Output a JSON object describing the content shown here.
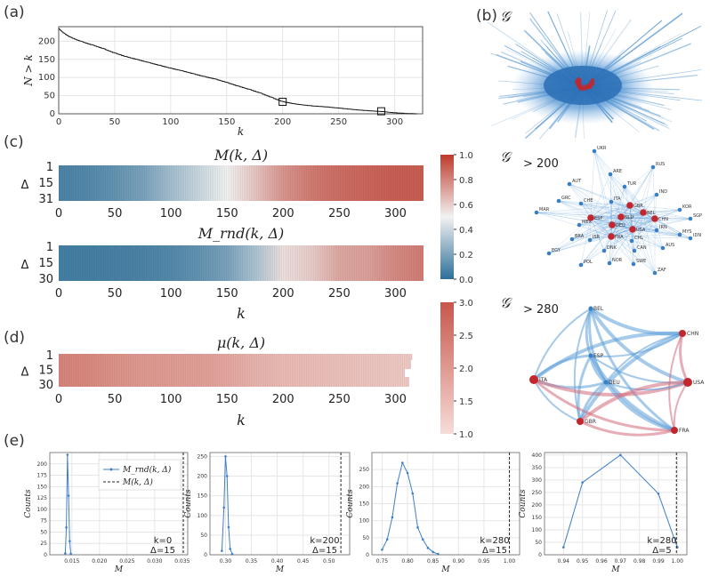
{
  "panel_labels": {
    "a": "(a)",
    "b": "(b)",
    "c": "(c)",
    "d": "(d)",
    "e": "(e)"
  },
  "network_titles": {
    "g": "𝒢",
    "g200": "𝒢",
    "g200_sub": "> 200",
    "g280": "𝒢",
    "g280_sub": "> 280"
  },
  "colors": {
    "blue": "#3a7fc4",
    "red": "#c1272d",
    "heat_low": "#2c6f99",
    "heat_mid": "#f2f2f2",
    "heat_high": "#bf3a2b",
    "mu_low": "#f3d4d0",
    "mu_high": "#c8574a"
  },
  "chart_data": [
    {
      "id": "a",
      "type": "line",
      "title": "",
      "xlabel": "k",
      "ylabel": "N > k",
      "xlim": [
        0,
        325
      ],
      "ylim": [
        0,
        240
      ],
      "xticks": [
        0,
        50,
        100,
        150,
        200,
        250,
        300
      ],
      "yticks": [
        0,
        50,
        100,
        150,
        200
      ],
      "x": [
        0,
        5,
        10,
        20,
        30,
        40,
        50,
        60,
        70,
        80,
        90,
        100,
        110,
        120,
        130,
        140,
        150,
        160,
        170,
        180,
        190,
        200,
        210,
        220,
        230,
        240,
        250,
        260,
        270,
        280,
        290,
        300,
        310,
        320
      ],
      "values": [
        235,
        222,
        212,
        200,
        190,
        180,
        168,
        158,
        150,
        142,
        134,
        126,
        119,
        111,
        103,
        96,
        87,
        77,
        68,
        58,
        46,
        34,
        28,
        24,
        21,
        19,
        16,
        13,
        10,
        8,
        6,
        3,
        1,
        0
      ],
      "markers": [
        {
          "x": 200,
          "y": 33
        },
        {
          "x": 288,
          "y": 7
        }
      ]
    },
    {
      "id": "c_top",
      "type": "heatmap",
      "title": "M(k, Δ)",
      "xlabel": "",
      "ylabel": "Δ",
      "xlim": [
        0,
        325
      ],
      "xticks": [
        0,
        50,
        100,
        150,
        200,
        250,
        300
      ],
      "yticks": [
        "1",
        "15",
        "31"
      ],
      "colorbar": {
        "min": 0.0,
        "max": 1.0,
        "ticks": [
          "0.0",
          "0.2",
          "0.4",
          "0.6",
          "0.8",
          "1.0"
        ]
      },
      "k": [
        0,
        25,
        50,
        75,
        100,
        125,
        150,
        175,
        200,
        225,
        250,
        275,
        300,
        325
      ],
      "values": [
        0.08,
        0.1,
        0.14,
        0.2,
        0.3,
        0.4,
        0.5,
        0.62,
        0.75,
        0.82,
        0.86,
        0.88,
        0.9,
        0.9
      ]
    },
    {
      "id": "c_bottom",
      "type": "heatmap",
      "title": "M_rnd(k, Δ)",
      "xlabel": "k",
      "ylabel": "Δ",
      "xlim": [
        0,
        325
      ],
      "xticks": [
        0,
        50,
        100,
        150,
        200,
        250,
        300
      ],
      "yticks": [
        "1",
        "15",
        "30"
      ],
      "k": [
        0,
        25,
        50,
        75,
        100,
        125,
        150,
        175,
        200,
        225,
        250,
        275,
        300,
        325
      ],
      "values": [
        0.06,
        0.06,
        0.07,
        0.08,
        0.1,
        0.14,
        0.2,
        0.32,
        0.55,
        0.6,
        0.7,
        0.72,
        0.78,
        0.82
      ]
    },
    {
      "id": "d",
      "type": "heatmap",
      "title": "μ(k, Δ)",
      "xlabel": "k",
      "ylabel": "Δ",
      "xlim": [
        0,
        325
      ],
      "xticks": [
        0,
        50,
        100,
        150,
        200,
        250,
        300
      ],
      "yticks": [
        "1",
        "15",
        "30"
      ],
      "colorbar": {
        "min": 1.0,
        "max": 3.0,
        "ticks": [
          "1.0",
          "1.5",
          "2.0",
          "2.5",
          "3.0"
        ]
      },
      "k": [
        0,
        25,
        50,
        75,
        100,
        125,
        150,
        175,
        200,
        225,
        250,
        275,
        300,
        315
      ],
      "values": [
        2.3,
        2.25,
        2.1,
        2.0,
        1.95,
        1.9,
        1.8,
        1.6,
        1.5,
        1.45,
        1.4,
        1.35,
        1.3,
        1.25
      ]
    },
    {
      "id": "e1",
      "type": "line",
      "xlabel": "M",
      "ylabel": "Counts",
      "xlim": [
        0.011,
        0.036
      ],
      "ylim": [
        0,
        225
      ],
      "xticks": [
        "0.015",
        "0.020",
        "0.025",
        "0.030",
        "0.035"
      ],
      "yticks": [
        "0",
        "25",
        "50",
        "75",
        "100",
        "125",
        "150",
        "175",
        "200"
      ],
      "x": [
        0.0138,
        0.014,
        0.0142,
        0.0144,
        0.0146,
        0.0148
      ],
      "values": [
        3,
        60,
        220,
        130,
        30,
        2
      ],
      "vline": 0.0352,
      "legend": {
        "series": "M_rnd(k, Δ)",
        "line": "M(k, Δ)"
      },
      "annotation": {
        "k": "k=0",
        "delta": "Δ=15"
      }
    },
    {
      "id": "e2",
      "type": "line",
      "xlabel": "M",
      "ylabel": "Counts",
      "xlim": [
        0.27,
        0.54
      ],
      "ylim": [
        0,
        260
      ],
      "xticks": [
        "0.30",
        "0.35",
        "0.40",
        "0.45",
        "0.50"
      ],
      "yticks": [
        "0",
        "50",
        "100",
        "150",
        "200",
        "250"
      ],
      "x": [
        0.293,
        0.297,
        0.3,
        0.303,
        0.306,
        0.309,
        0.313
      ],
      "values": [
        10,
        120,
        250,
        200,
        70,
        15,
        2
      ],
      "vline": 0.523,
      "annotation": {
        "k": "k=200",
        "delta": "Δ=15"
      }
    },
    {
      "id": "e3",
      "type": "line",
      "xlabel": "M",
      "ylabel": "Counts",
      "xlim": [
        0.73,
        1.02
      ],
      "ylim": [
        0,
        300
      ],
      "xticks": [
        "0.75",
        "0.80",
        "0.85",
        "0.90",
        "0.95",
        "1.00"
      ],
      "yticks": [
        "0",
        "50",
        "100",
        "150",
        "200",
        "250"
      ],
      "x": [
        0.75,
        0.76,
        0.77,
        0.78,
        0.79,
        0.8,
        0.81,
        0.82,
        0.83,
        0.84,
        0.85,
        0.86
      ],
      "values": [
        15,
        45,
        110,
        210,
        270,
        240,
        180,
        80,
        45,
        20,
        8,
        2
      ],
      "vline": 1.0,
      "annotation": {
        "k": "k=280",
        "delta": "Δ=15"
      }
    },
    {
      "id": "e4",
      "type": "line",
      "xlabel": "M",
      "ylabel": "Counts",
      "xlim": [
        0.93,
        1.005
      ],
      "ylim": [
        0,
        410
      ],
      "xticks": [
        "0.94",
        "0.95",
        "0.96",
        "0.97",
        "0.98",
        "0.99",
        "1.00"
      ],
      "yticks": [
        "0",
        "50",
        "100",
        "150",
        "200",
        "250",
        "300",
        "350",
        "400"
      ],
      "x": [
        0.94,
        0.95,
        0.97,
        0.99,
        1.0
      ],
      "values": [
        30,
        290,
        400,
        245,
        30
      ],
      "vline": 0.9995,
      "annotation": {
        "k": "k=280",
        "delta": "Δ=5"
      }
    }
  ],
  "network_g200": {
    "red_nodes": [
      "GBR",
      "BEL",
      "CHN",
      "ESP",
      "NLD",
      "DEU",
      "USA",
      "FRA"
    ],
    "blue_nodes": [
      "UKR",
      "RUS",
      "ARE",
      "TUR",
      "AUT",
      "ITA",
      "IND",
      "GRC",
      "CHE",
      "KOR",
      "MAR",
      "SGP",
      "MEX",
      "IRN",
      "MYS",
      "BRA",
      "ISR",
      "CHL",
      "IDN",
      "CAN",
      "AUS",
      "DNK",
      "EGY",
      "NOR",
      "SWE",
      "POL",
      "ZAF"
    ]
  },
  "network_g280": {
    "red_nodes": [
      "CHN",
      "USA",
      "FRA",
      "GBR",
      "ITA"
    ],
    "blue_nodes": [
      "BEL",
      "ESP",
      "DEU"
    ]
  }
}
